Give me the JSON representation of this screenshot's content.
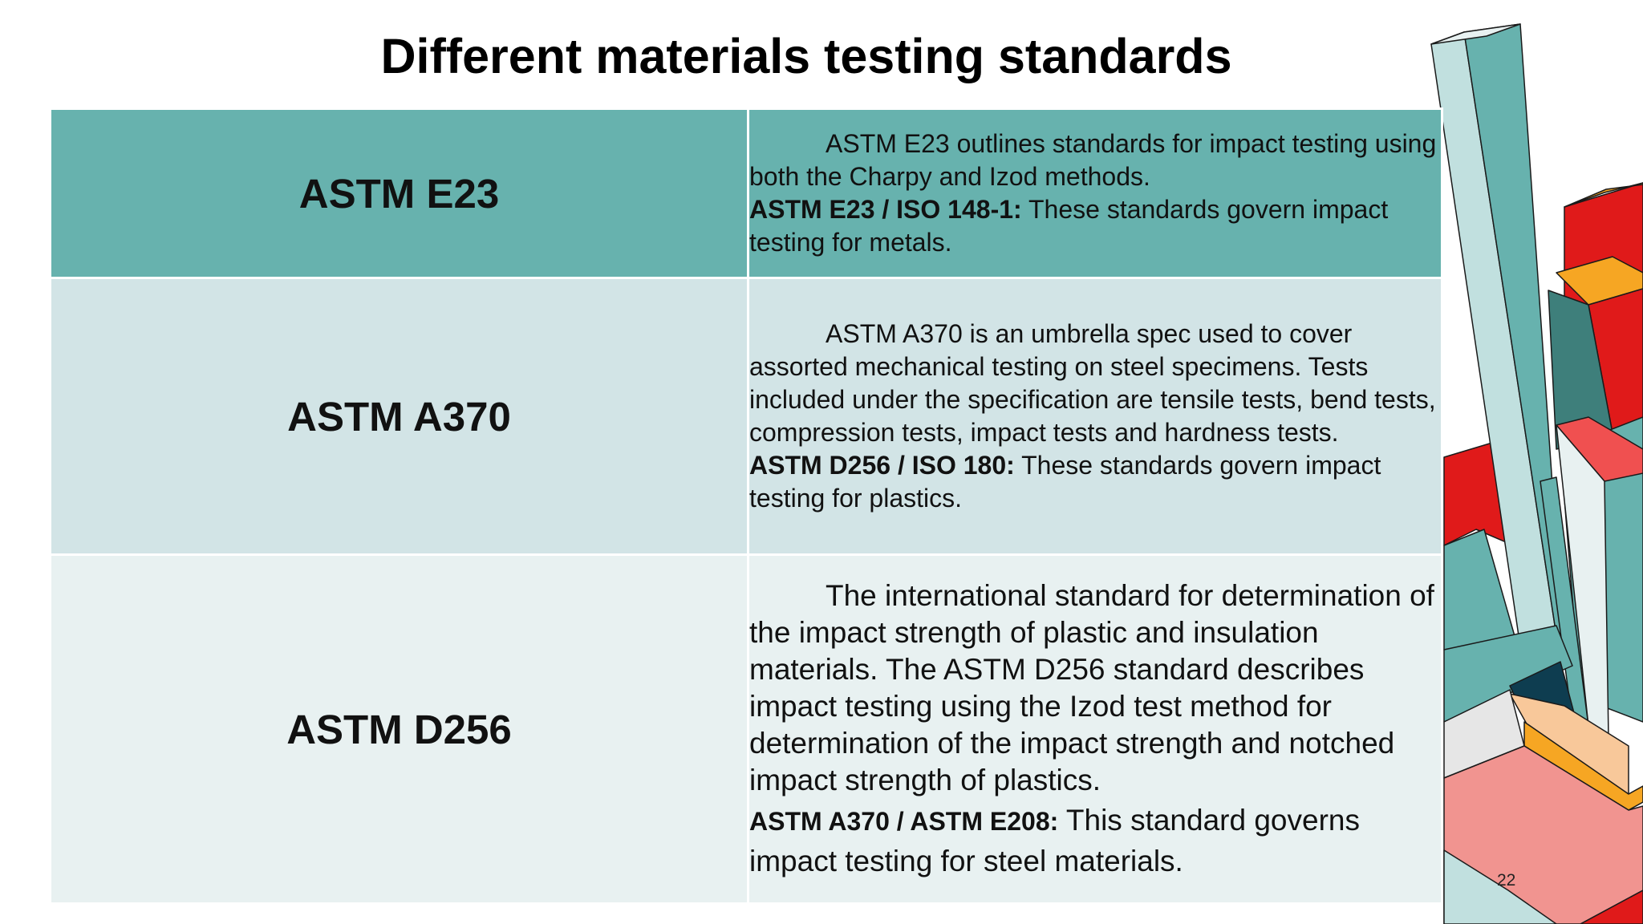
{
  "slide": {
    "title": "Different materials testing standards",
    "page_number": "22"
  },
  "rows": [
    {
      "name": "ASTM E23",
      "intro": "ASTM E23 outlines standards for impact testing using both the Charpy and Izod methods.",
      "standard_code": "ASTM E23 / ISO 148-1:",
      "standard_text": " These standards govern impact testing for metals."
    },
    {
      "name": "ASTM A370",
      "intro": "ASTM A370 is an umbrella spec used to cover assorted mechanical testing on steel specimens. Tests included under the specification are tensile tests, bend tests, compression tests, impact tests and hardness tests.",
      "standard_code": "ASTM D256 / ISO 180:",
      "standard_text": " These standards govern impact testing for plastics."
    },
    {
      "name": "ASTM D256",
      "intro": "The international standard for determination of the impact strength of plastic and insulation materials. The ASTM D256 standard describes impact testing using the Izod test method for determination of the impact strength and notched impact strength of plastics.",
      "standard_code": "ASTM A370 / ASTM E208:",
      "standard_text": " This standard governs impact testing for steel materials."
    }
  ],
  "colors": {
    "teal": "#67b2ae",
    "light_teal": "#d2e4e6",
    "pale_teal": "#e8f1f1",
    "red": "#e01a1a",
    "orange": "#f6a623",
    "salmon": "#f19490",
    "peach": "#f8c89a",
    "dark_teal": "#3e7f7b",
    "navy": "#0e3d50"
  }
}
